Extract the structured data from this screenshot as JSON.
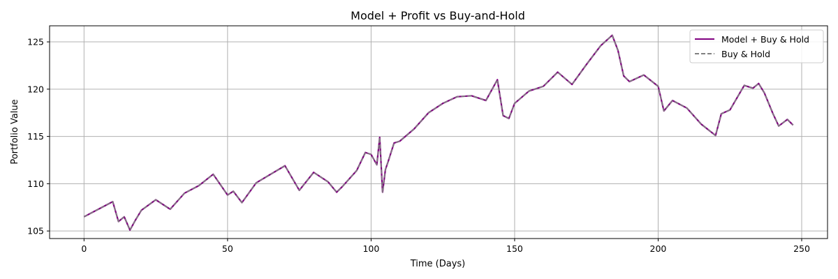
{
  "chart_data": {
    "type": "line",
    "title": "Model + Profit vs Buy-and-Hold",
    "xlabel": "Time (Days)",
    "ylabel": "Portfolio Value",
    "xlim": [
      -12,
      259
    ],
    "ylim": [
      104.2,
      126.7
    ],
    "xticks": [
      0,
      50,
      100,
      150,
      200,
      250
    ],
    "yticks": [
      105,
      110,
      115,
      120,
      125
    ],
    "grid": true,
    "legend_position": "top-right",
    "colors": {
      "model": "#800080",
      "buy_hold": "#808080",
      "grid": "#b0b0b0",
      "axes": "#000000"
    },
    "x": [
      0,
      10,
      12,
      14,
      16,
      18,
      20,
      25,
      30,
      35,
      40,
      45,
      50,
      52,
      55,
      60,
      65,
      70,
      75,
      80,
      85,
      88,
      90,
      95,
      98,
      100,
      102,
      103,
      104,
      105,
      106,
      108,
      110,
      115,
      120,
      125,
      130,
      135,
      140,
      144,
      146,
      148,
      150,
      155,
      160,
      165,
      170,
      175,
      180,
      184,
      186,
      188,
      190,
      195,
      200,
      202,
      205,
      210,
      215,
      220,
      222,
      225,
      230,
      233,
      235,
      237,
      240,
      242,
      245,
      247
    ],
    "series": [
      {
        "name": "Model + Buy & Hold",
        "style": "solid",
        "values": [
          106.5,
          108.1,
          106.0,
          106.5,
          105.1,
          106.2,
          107.2,
          108.3,
          107.3,
          109.0,
          109.8,
          111.0,
          108.8,
          109.2,
          108.0,
          110.1,
          111.0,
          111.9,
          109.3,
          111.2,
          110.2,
          109.1,
          109.7,
          111.4,
          113.3,
          113.1,
          112.0,
          114.9,
          109.1,
          111.5,
          112.4,
          114.3,
          114.5,
          115.8,
          117.5,
          118.5,
          119.2,
          119.3,
          118.8,
          121.0,
          117.2,
          116.9,
          118.5,
          119.8,
          120.3,
          121.8,
          120.5,
          122.6,
          124.6,
          125.7,
          124.1,
          121.4,
          120.8,
          121.5,
          120.3,
          117.7,
          118.8,
          118.0,
          116.3,
          115.1,
          117.4,
          117.8,
          120.4,
          120.1,
          120.6,
          119.6,
          117.4,
          116.1,
          116.8,
          116.2
        ]
      },
      {
        "name": "Buy & Hold",
        "style": "dashed",
        "values": [
          106.5,
          108.1,
          106.0,
          106.5,
          105.1,
          106.2,
          107.2,
          108.3,
          107.3,
          109.0,
          109.8,
          111.0,
          108.8,
          109.2,
          108.0,
          110.1,
          111.0,
          111.9,
          109.3,
          111.2,
          110.2,
          109.1,
          109.7,
          111.4,
          113.3,
          113.1,
          112.0,
          114.9,
          109.1,
          111.5,
          112.4,
          114.3,
          114.5,
          115.8,
          117.5,
          118.5,
          119.2,
          119.3,
          118.8,
          121.0,
          117.2,
          116.9,
          118.5,
          119.8,
          120.3,
          121.8,
          120.5,
          122.6,
          124.6,
          125.7,
          124.1,
          121.4,
          120.8,
          121.5,
          120.3,
          117.7,
          118.8,
          118.0,
          116.3,
          115.1,
          117.4,
          117.8,
          120.4,
          120.1,
          120.6,
          119.6,
          117.4,
          116.1,
          116.8,
          116.2
        ]
      }
    ]
  }
}
